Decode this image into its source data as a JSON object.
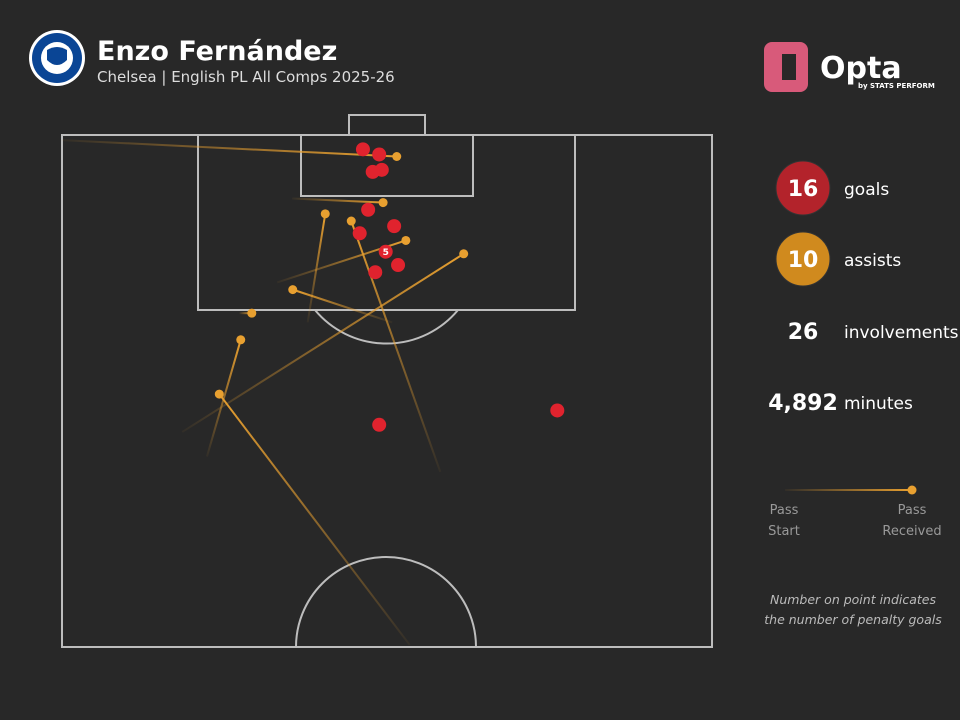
{
  "chart_data": {
    "type": "pitch-map",
    "title": "Enzo Fernández",
    "subtitle": "Chelsea | English PL All Comps 2025-26",
    "brand": {
      "name": "Opta",
      "tagline": "by STATS PERFORM"
    },
    "xlim": [
      0,
      100
    ],
    "ylim": [
      50,
      100
    ],
    "goals": {
      "name": "goals",
      "color": "#e0232e",
      "x": [
        46.3,
        48.8,
        49.2,
        47.8,
        47.1,
        51.1,
        45.8,
        51.7,
        48.2,
        48.8,
        76.2
      ],
      "y": [
        98.6,
        98.1,
        96.6,
        96.4,
        92.7,
        91.1,
        90.4,
        87.3,
        86.6,
        71.7,
        73.1
      ]
    },
    "penalty_goals": {
      "x": 49.8,
      "y": 88.6,
      "count": 5
    },
    "assists": {
      "name": "assists",
      "color": "#e8a030",
      "start_x": [
        0,
        35.4,
        37.8,
        58.2,
        33.1,
        18.5,
        50.8,
        27.3,
        22.3,
        53.5
      ],
      "start_y": [
        99.5,
        93.8,
        81.7,
        67.1,
        85.6,
        71.0,
        81.7,
        82.6,
        68.6,
        50.2
      ],
      "end_x": [
        51.5,
        49.4,
        40.5,
        44.5,
        52.9,
        61.8,
        35.5,
        29.2,
        27.5,
        24.2
      ],
      "end_y": [
        97.9,
        93.4,
        92.3,
        91.6,
        89.7,
        88.4,
        84.9,
        82.6,
        80.0,
        74.7
      ]
    },
    "stats": [
      {
        "value": 16,
        "label": "goals",
        "color": "#b3232b"
      },
      {
        "value": 10,
        "label": "assists",
        "color": "#d08a1e"
      },
      {
        "value": 26,
        "label": "involvements"
      },
      {
        "value": 4892,
        "value_label": "4,892",
        "label": "minutes"
      }
    ],
    "legend": {
      "start": [
        "Pass",
        "Start"
      ],
      "received": [
        "Pass",
        "Received"
      ]
    },
    "note": [
      "Number on point indicates",
      "the number of penalty goals"
    ]
  }
}
